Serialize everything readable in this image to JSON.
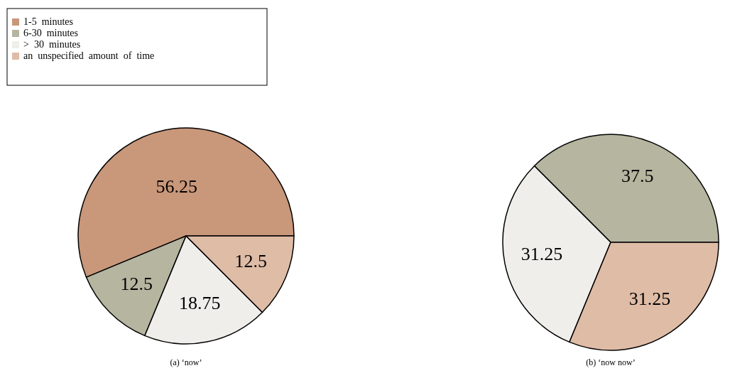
{
  "chart_data": [
    {
      "type": "pie",
      "title": "(a) ‘now’",
      "categories": [
        "1-5  minutes",
        "6-30  minutes",
        ">  30  minutes",
        "an  unspecified  amount  of  time"
      ],
      "values": [
        56.25,
        12.5,
        18.75,
        12.5
      ],
      "colors": [
        "#c9977a",
        "#b5b5a0",
        "#efeeea",
        "#dfbca6"
      ],
      "data_labels": true,
      "legend": "top left"
    },
    {
      "type": "pie",
      "title": "(b) ‘now now’",
      "categories": [
        null,
        null,
        null
      ],
      "values": [
        37.5,
        31.25,
        31.25
      ],
      "colors": [
        "#b5b5a0",
        "#efeeea",
        "#dfbca6"
      ],
      "data_labels": true
    }
  ]
}
